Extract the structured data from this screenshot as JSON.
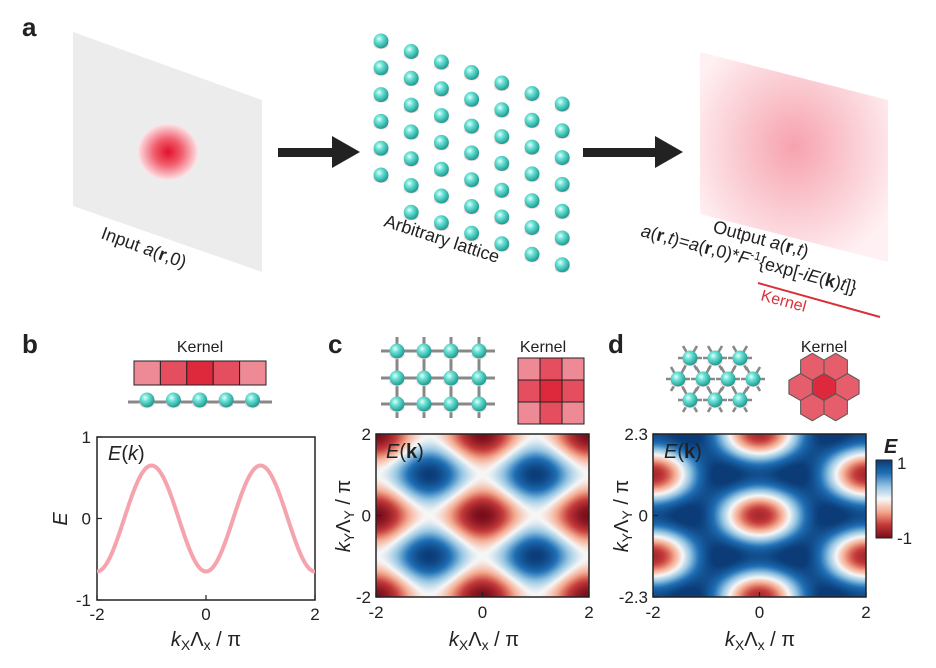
{
  "panels": {
    "a": {
      "label": "a",
      "input_label": "Input a(r,0)",
      "lattice_label": "Arbitrary lattice",
      "output_label": "Output a(r,t)",
      "formula": "a(r,t)=a(r,0)*F⁻¹{exp[-iE(k)t]}",
      "kernel_label": "Kernel",
      "kernel_color": "#d9303a"
    },
    "b": {
      "label": "b",
      "kernel_label": "Kernel",
      "kernel_cells": [
        0.35,
        0.75,
        1.0,
        0.75,
        0.35
      ],
      "energy_label": "E(k)",
      "curve_color": "#f5a3ad"
    },
    "c": {
      "label": "c",
      "kernel_label": "Kernel",
      "kernel_grid": [
        [
          0.35,
          0.75,
          0.35
        ],
        [
          0.75,
          1.0,
          0.75
        ],
        [
          0.35,
          0.75,
          0.35
        ]
      ],
      "energy_label": "E(k)"
    },
    "d": {
      "label": "d",
      "kernel_label": "Kernel",
      "energy_label": "E(k)",
      "colorbar_title": "E",
      "colorbar_ticks": [
        "1",
        "-1"
      ]
    }
  },
  "chart_data": [
    {
      "type": "line",
      "panel": "b",
      "xlabel": "kXΛx / π",
      "ylabel": "E",
      "xlim": [
        -2,
        2
      ],
      "ylim": [
        -1,
        1
      ],
      "x_ticks": [
        "-2",
        "0",
        "2"
      ],
      "y_ticks": [
        "1",
        "0",
        "-1"
      ],
      "function": "E = -0.65 cos(pi x)",
      "x": [
        -2,
        -1.5,
        -1,
        -0.5,
        0,
        0.5,
        1,
        1.5,
        2
      ],
      "y": [
        -0.65,
        0,
        0.65,
        0,
        -0.65,
        0,
        0.65,
        0,
        -0.65
      ]
    },
    {
      "type": "heatmap",
      "panel": "c",
      "xlabel": "kXΛx / π",
      "ylabel": "kYΛY / π",
      "xlim": [
        -2,
        2
      ],
      "ylim": [
        -2,
        2
      ],
      "x_ticks": [
        "-2",
        "0",
        "2"
      ],
      "y_ticks": [
        "2",
        "0",
        "-2"
      ],
      "function": "E = -0.5 (cos(pi kx) + cos(pi ky))",
      "colormap": [
        "#0b3c78",
        "#1f6fb5",
        "#93c4e2",
        "#f7f7f7",
        "#f4a98e",
        "#c53b3a",
        "#7a0d1c"
      ]
    },
    {
      "type": "heatmap",
      "panel": "d",
      "xlabel": "kXΛx / π",
      "ylabel": "kYΛY / π",
      "xlim": [
        -2,
        2
      ],
      "ylim": [
        -2.3,
        2.3
      ],
      "x_ticks": [
        "-2",
        "0",
        "2"
      ],
      "y_ticks": [
        "2.3",
        "0",
        "-2.3"
      ],
      "function": "triangular lattice band",
      "colorbar_range": [
        -1,
        1
      ],
      "colormap": [
        "#0b3c78",
        "#1f6fb5",
        "#93c4e2",
        "#f7f7f7",
        "#f4a98e",
        "#c53b3a",
        "#7a0d1c"
      ]
    }
  ]
}
